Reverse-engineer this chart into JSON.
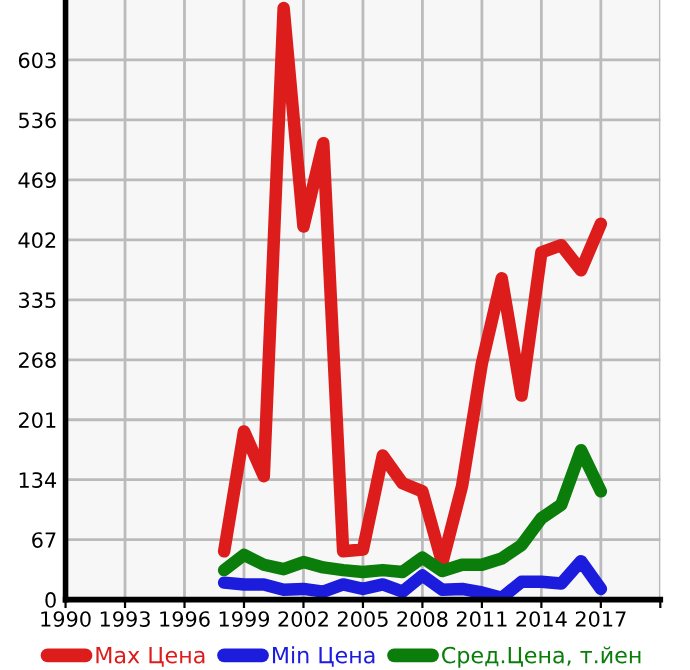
{
  "chart_data": {
    "type": "line",
    "x": [
      1998,
      1999,
      2000,
      2001,
      2002,
      2003,
      2004,
      2005,
      2006,
      2007,
      2008,
      2009,
      2010,
      2011,
      2012,
      2013,
      2014,
      2015,
      2016,
      2017
    ],
    "series": [
      {
        "name": "Max Цена",
        "color": "#dd1c1c",
        "values": [
          54,
          188,
          138,
          661,
          417,
          510,
          54,
          56,
          161,
          130,
          121,
          41,
          127,
          264,
          359,
          228,
          388,
          396,
          368,
          420
        ]
      },
      {
        "name": "Min Цена",
        "color": "#1c1cdd",
        "values": [
          19,
          17,
          17,
          11,
          12,
          9,
          17,
          12,
          17,
          9,
          27,
          11,
          12,
          8,
          2,
          20,
          20,
          18,
          43,
          12
        ]
      },
      {
        "name": "Сред.Цена, т.йен",
        "color": "#0a7d0a",
        "values": [
          33,
          50,
          39,
          34,
          42,
          36,
          33,
          31,
          33,
          31,
          47,
          32,
          39,
          39,
          46,
          61,
          91,
          106,
          167,
          121
        ]
      }
    ],
    "xlim": [
      1990,
      2020
    ],
    "xticks": [
      1990,
      1993,
      1996,
      1999,
      2002,
      2005,
      2008,
      2011,
      2014,
      2017,
      {
        "value": 2020,
        "label": null
      }
    ],
    "ylim": [
      0,
      670
    ],
    "yticks": [
      0,
      67,
      134,
      201,
      268,
      335,
      402,
      469,
      536,
      603
    ],
    "grid": true,
    "legend": "bottom",
    "marker": "none",
    "line_style": "solid"
  }
}
